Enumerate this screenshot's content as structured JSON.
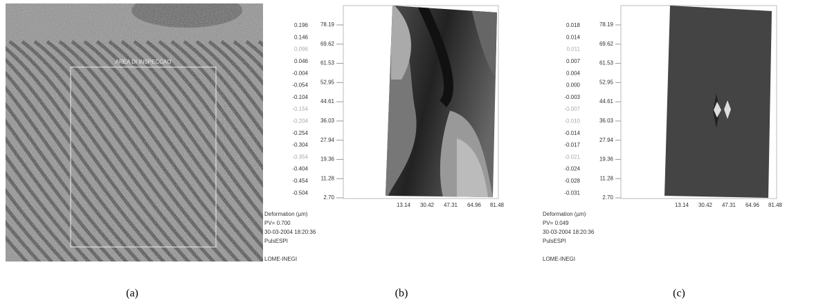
{
  "panels": [
    {
      "image_label": "AREA DI INSPECCAO",
      "caption": "(a)"
    },
    {
      "scale": [
        "0.196",
        "0.146",
        "0.096",
        "0.046",
        "-0.004",
        "-0.054",
        "-0.104",
        "-0.154",
        "-0.204",
        "-0.254",
        "-0.304",
        "-0.354",
        "-0.404",
        "-0.454",
        "-0.504"
      ],
      "y_labels": [
        "78.19",
        "69.62",
        "61.53",
        "52.95",
        "44.61",
        "36.03",
        "27.94",
        "19.36",
        "11.28",
        "2.70"
      ],
      "x_labels": [
        "13.14",
        "30.42",
        "47.31",
        "64.96",
        "81.48"
      ],
      "info": [
        "Deformation (µm)",
        "PV=  0.700",
        "30-03-2004  18:20:36",
        "PulsESPI",
        "LOME-INEGI"
      ],
      "caption": "(b)"
    },
    {
      "scale": [
        "0.018",
        "0.014",
        "0.011",
        "0.007",
        "0.004",
        "0.000",
        "-0.003",
        "-0.007",
        "-0.010",
        "-0.014",
        "-0.017",
        "-0.021",
        "-0.024",
        "-0.028",
        "-0.031"
      ],
      "y_labels": [
        "78.19",
        "69.62",
        "61.53",
        "52.95",
        "44.61",
        "36.03",
        "27.94",
        "19.36",
        "11.28",
        "2.70"
      ],
      "x_labels": [
        "13.14",
        "30.42",
        "47.31",
        "64.96",
        "81.48"
      ],
      "info": [
        "Deformation (µm)",
        "PV=  0.049",
        "30-03-2004  18:20:36",
        "PulsESPI",
        "LOME-INEGI"
      ],
      "caption": "(c)"
    }
  ]
}
